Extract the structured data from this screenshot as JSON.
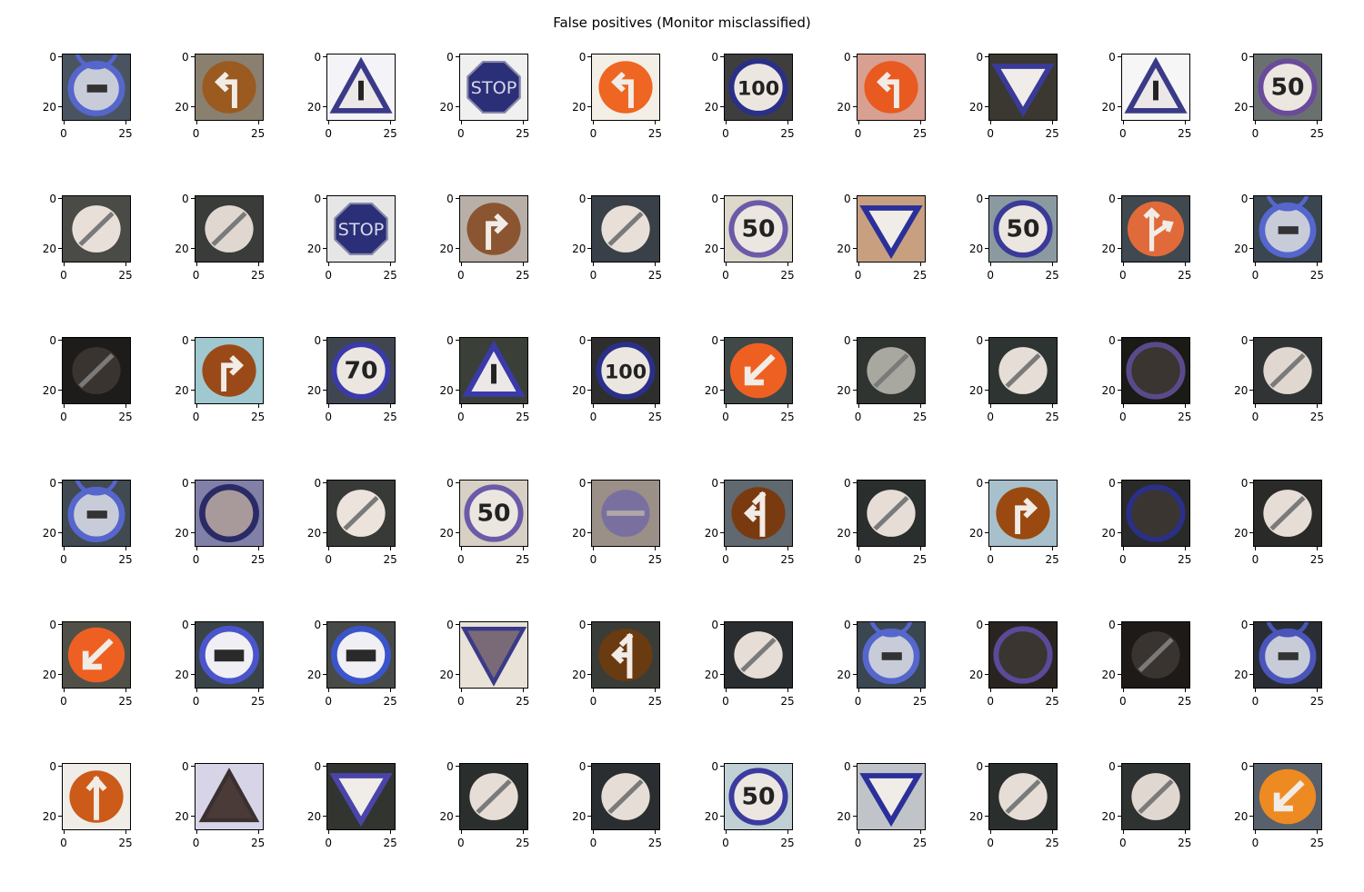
{
  "figure": {
    "title": "False positives (Monitor misclassified)",
    "grid": {
      "rows": 6,
      "cols": 10
    },
    "axis_ticks": {
      "y": [
        "0",
        "20"
      ],
      "x": [
        "0",
        "25"
      ]
    },
    "cells": [
      {
        "sign": "vehicle-ban",
        "bg": "#4a5460",
        "fg": "#5566cc",
        "text": ""
      },
      {
        "sign": "turn-left",
        "bg": "#8a8070",
        "fg": "#9a5a20",
        "text": ""
      },
      {
        "sign": "triangle-warning",
        "bg": "#f4f4f8",
        "fg": "#3a3a88",
        "text": ""
      },
      {
        "sign": "stop",
        "bg": "#f0f0f0",
        "fg": "#2a2f78",
        "text": "STOP"
      },
      {
        "sign": "turn-left",
        "bg": "#f3efe6",
        "fg": "#ee6622",
        "text": ""
      },
      {
        "sign": "speed-limit",
        "bg": "#3e3e3e",
        "fg": "#2a2f88",
        "text": "100"
      },
      {
        "sign": "turn-left",
        "bg": "#d8a090",
        "fg": "#e85a20",
        "text": ""
      },
      {
        "sign": "yield",
        "bg": "#3a3830",
        "fg": "#3a3a99",
        "text": ""
      },
      {
        "sign": "triangle-warning",
        "bg": "#f6f6f6",
        "fg": "#3a3a88",
        "text": ""
      },
      {
        "sign": "speed-limit",
        "bg": "#6a7070",
        "fg": "#6a4a9a",
        "text": "50"
      },
      {
        "sign": "end-restriction",
        "bg": "#4a4a46",
        "fg": "#e8e0d8",
        "text": ""
      },
      {
        "sign": "end-restriction",
        "bg": "#3a3c3a",
        "fg": "#e0d8d0",
        "text": ""
      },
      {
        "sign": "stop",
        "bg": "#e6e6e6",
        "fg": "#2a2f78",
        "text": "STOP"
      },
      {
        "sign": "turn-right",
        "bg": "#b8b0a8",
        "fg": "#8a5530",
        "text": ""
      },
      {
        "sign": "end-restriction",
        "bg": "#3a4048",
        "fg": "#e8e0d8",
        "text": ""
      },
      {
        "sign": "speed-limit",
        "bg": "#dcd8cc",
        "fg": "#6a5aa8",
        "text": "50"
      },
      {
        "sign": "yield",
        "bg": "#c8a080",
        "fg": "#2a2f99",
        "text": ""
      },
      {
        "sign": "speed-limit",
        "bg": "#8a9aa0",
        "fg": "#3a3a99",
        "text": "50"
      },
      {
        "sign": "direction-split",
        "bg": "#404850",
        "fg": "#e06a3a",
        "text": ""
      },
      {
        "sign": "vehicle-ban",
        "bg": "#3a4650",
        "fg": "#5566cc",
        "text": ""
      },
      {
        "sign": "end-restriction-dark",
        "bg": "#1e1c1a",
        "fg": "#3a3430",
        "text": ""
      },
      {
        "sign": "turn-right",
        "bg": "#a0c8d0",
        "fg": "#9a4a18",
        "text": ""
      },
      {
        "sign": "speed-limit",
        "bg": "#404650",
        "fg": "#3a3aaa",
        "text": "70"
      },
      {
        "sign": "triangle-warning",
        "bg": "#3a4038",
        "fg": "#3a3aaa",
        "text": ""
      },
      {
        "sign": "speed-limit",
        "bg": "#2e2e2e",
        "fg": "#2a2f88",
        "text": "100"
      },
      {
        "sign": "keep-left",
        "bg": "#404848",
        "fg": "#ee6022",
        "text": ""
      },
      {
        "sign": "end-restriction",
        "bg": "#303430",
        "fg": "#a8a8a0",
        "text": ""
      },
      {
        "sign": "end-restriction",
        "bg": "#2e3432",
        "fg": "#e6ded6",
        "text": ""
      },
      {
        "sign": "speed-limit-dark",
        "bg": "#1a1a16",
        "fg": "#5a4a8a",
        "text": ""
      },
      {
        "sign": "end-restriction",
        "bg": "#303434",
        "fg": "#e0d8d0",
        "text": ""
      },
      {
        "sign": "vehicle-ban",
        "bg": "#404a50",
        "fg": "#5566cc",
        "text": ""
      },
      {
        "sign": "no-vehicles",
        "bg": "#8080a8",
        "fg": "#2a2a66",
        "text": ""
      },
      {
        "sign": "end-restriction",
        "bg": "#383a38",
        "fg": "#ece4dc",
        "text": ""
      },
      {
        "sign": "speed-limit",
        "bg": "#d8d0c4",
        "fg": "#6a5aa8",
        "text": "50"
      },
      {
        "sign": "no-entry-faded",
        "bg": "#9a9088",
        "fg": "#7a70a0",
        "text": ""
      },
      {
        "sign": "straight-left",
        "bg": "#606870",
        "fg": "#7a3a10",
        "text": ""
      },
      {
        "sign": "end-restriction",
        "bg": "#2a2e2c",
        "fg": "#e6ded6",
        "text": ""
      },
      {
        "sign": "turn-right",
        "bg": "#a8c0cc",
        "fg": "#9a4a10",
        "text": ""
      },
      {
        "sign": "speed-limit-dark",
        "bg": "#2a2a28",
        "fg": "#2a2f88",
        "text": ""
      },
      {
        "sign": "end-restriction",
        "bg": "#2a2a28",
        "fg": "#e6ded6",
        "text": ""
      },
      {
        "sign": "keep-left",
        "bg": "#505048",
        "fg": "#ee6022",
        "text": ""
      },
      {
        "sign": "truck-ban",
        "bg": "#3a4448",
        "fg": "#4a55cc",
        "text": ""
      },
      {
        "sign": "truck-ban",
        "bg": "#484a48",
        "fg": "#3a55cc",
        "text": ""
      },
      {
        "sign": "yield-inverted",
        "bg": "#e8e2d8",
        "fg": "#3a3a88",
        "text": ""
      },
      {
        "sign": "straight-left",
        "bg": "#3a3c38",
        "fg": "#6a3a10",
        "text": ""
      },
      {
        "sign": "end-restriction",
        "bg": "#2a2e30",
        "fg": "#e6ded6",
        "text": ""
      },
      {
        "sign": "vehicle-ban",
        "bg": "#3a4650",
        "fg": "#5566cc",
        "text": ""
      },
      {
        "sign": "speed-limit-dark",
        "bg": "#2a2420",
        "fg": "#5a4a9a",
        "text": ""
      },
      {
        "sign": "end-restriction-dark",
        "bg": "#1e1a18",
        "fg": "#3a3430",
        "text": ""
      },
      {
        "sign": "vehicle-ban",
        "bg": "#2a2e34",
        "fg": "#4a55bb",
        "text": ""
      },
      {
        "sign": "straight",
        "bg": "#f0ece8",
        "fg": "#cc5a18",
        "text": ""
      },
      {
        "sign": "triangle-dark",
        "bg": "#d8d4e8",
        "fg": "#3a3030",
        "text": ""
      },
      {
        "sign": "yield",
        "bg": "#323430",
        "fg": "#4a44aa",
        "text": ""
      },
      {
        "sign": "end-restriction",
        "bg": "#2a2e2c",
        "fg": "#e6ded6",
        "text": ""
      },
      {
        "sign": "end-restriction",
        "bg": "#2a2e30",
        "fg": "#e6ded6",
        "text": ""
      },
      {
        "sign": "speed-limit",
        "bg": "#c0d0d4",
        "fg": "#3a3aa0",
        "text": "50"
      },
      {
        "sign": "yield",
        "bg": "#c0c4c8",
        "fg": "#2a2f99",
        "text": ""
      },
      {
        "sign": "end-restriction",
        "bg": "#2a2e2c",
        "fg": "#e6ded6",
        "text": ""
      },
      {
        "sign": "end-restriction",
        "bg": "#2e3230",
        "fg": "#e0d8d0",
        "text": ""
      },
      {
        "sign": "keep-left",
        "bg": "#58606c",
        "fg": "#ee8a22",
        "text": ""
      }
    ]
  }
}
